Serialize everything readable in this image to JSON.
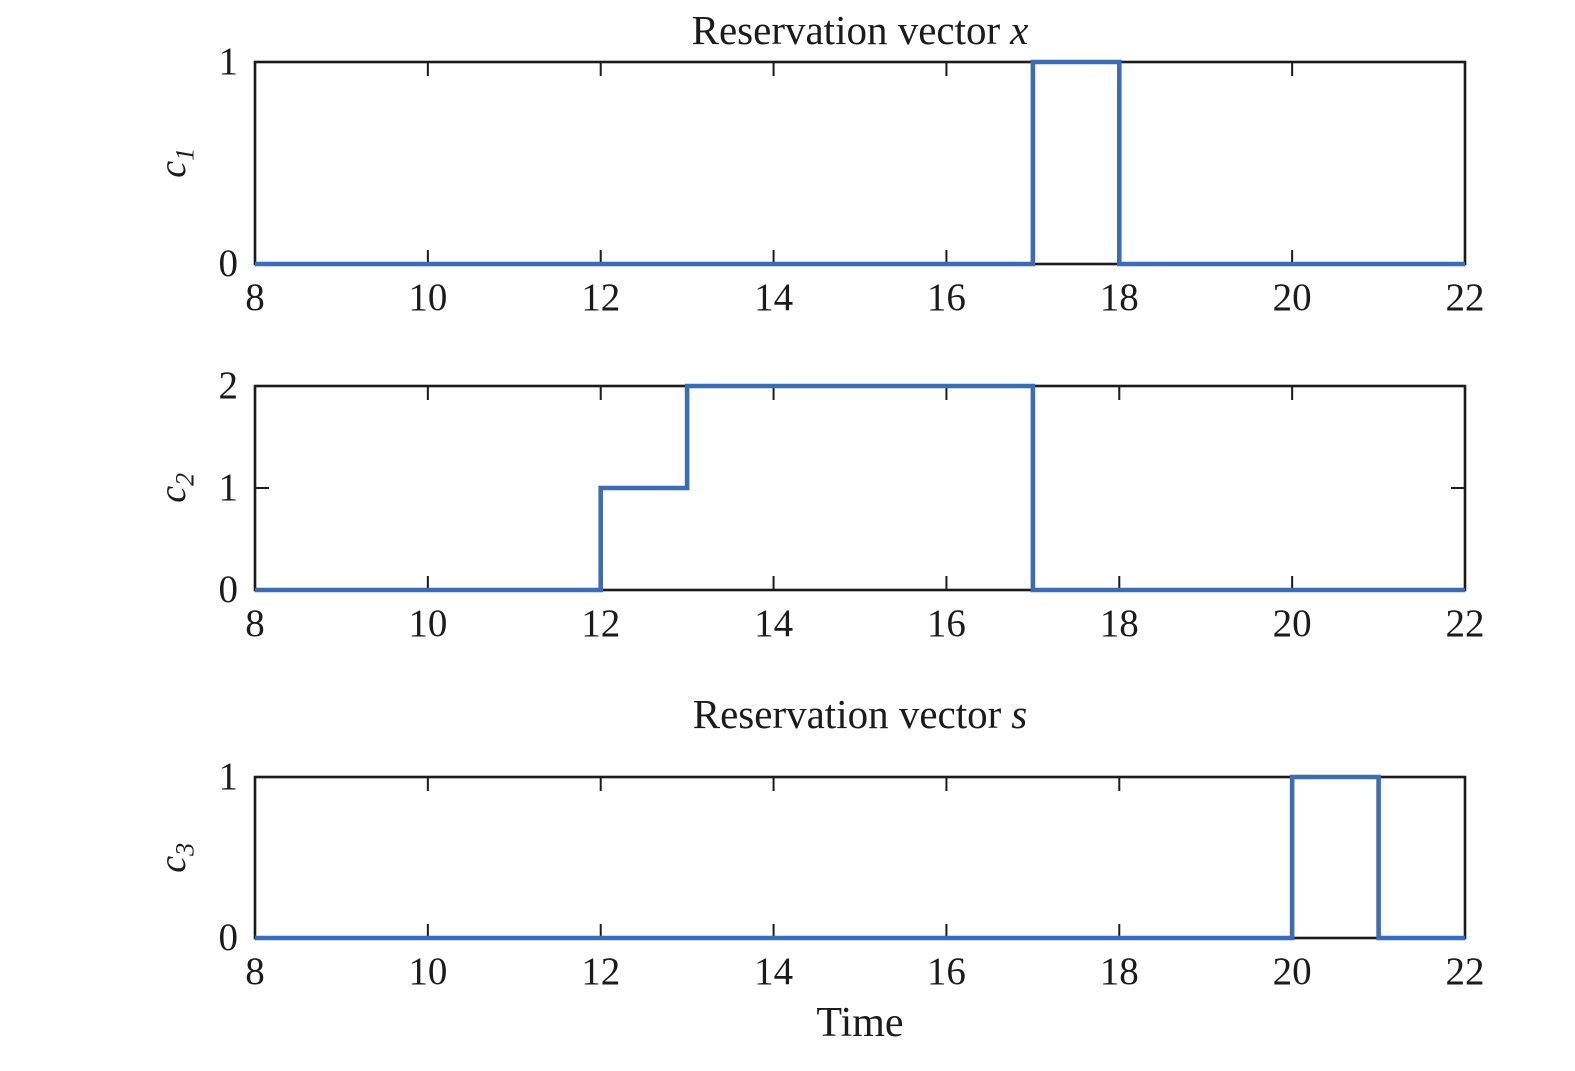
{
  "figure": {
    "background": "#ffffff",
    "line_color": "#3a6db5",
    "axis_color": "#1b1b1b",
    "time_label": "Time"
  },
  "chart_data": [
    {
      "type": "step",
      "title_text": "Reservation vector",
      "title_var": "x",
      "ylabel_base": "c",
      "ylabel_sub": "1",
      "xlabel": "",
      "xlim": [
        8,
        22
      ],
      "ylim": [
        0,
        1
      ],
      "x_ticks": [
        8,
        10,
        12,
        14,
        16,
        18,
        20,
        22
      ],
      "y_ticks": [
        0,
        1
      ],
      "grid": false,
      "points": [
        [
          8,
          0
        ],
        [
          17,
          0
        ],
        [
          17,
          1
        ],
        [
          18,
          1
        ],
        [
          18,
          0
        ],
        [
          22,
          0
        ]
      ]
    },
    {
      "type": "step",
      "title_text": "",
      "title_var": "",
      "ylabel_base": "c",
      "ylabel_sub": "2",
      "xlabel": "",
      "xlim": [
        8,
        22
      ],
      "ylim": [
        0,
        2
      ],
      "x_ticks": [
        8,
        10,
        12,
        14,
        16,
        18,
        20,
        22
      ],
      "y_ticks": [
        0,
        1,
        2
      ],
      "grid": false,
      "points": [
        [
          8,
          0
        ],
        [
          12,
          0
        ],
        [
          12,
          1
        ],
        [
          13,
          1
        ],
        [
          13,
          2
        ],
        [
          17,
          2
        ],
        [
          17,
          0
        ],
        [
          22,
          0
        ]
      ]
    },
    {
      "type": "step",
      "title_text": "Reservation vector",
      "title_var": "s",
      "ylabel_base": "c",
      "ylabel_sub": "3",
      "xlabel": "Time",
      "xlim": [
        8,
        22
      ],
      "ylim": [
        0,
        1
      ],
      "x_ticks": [
        8,
        10,
        12,
        14,
        16,
        18,
        20,
        22
      ],
      "y_ticks": [
        0,
        1
      ],
      "grid": false,
      "points": [
        [
          8,
          0
        ],
        [
          20,
          0
        ],
        [
          20,
          1
        ],
        [
          21,
          1
        ],
        [
          21,
          0
        ],
        [
          22,
          0
        ]
      ]
    }
  ]
}
